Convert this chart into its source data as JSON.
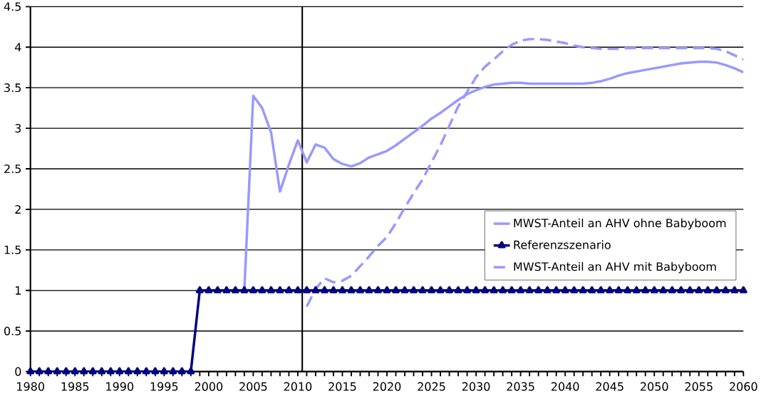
{
  "chart_data": {
    "type": "line",
    "xlim": [
      1980,
      2060
    ],
    "xticks": [
      1980,
      1985,
      1990,
      1995,
      2000,
      2005,
      2010,
      2015,
      2020,
      2025,
      2030,
      2035,
      2040,
      2045,
      2050,
      2055,
      2060
    ],
    "ylim": [
      0,
      4.5
    ],
    "yticks": [
      0,
      0.5,
      1,
      1.5,
      2,
      2.5,
      3,
      3.5,
      4,
      4.5
    ],
    "grid": "y",
    "legend": "right",
    "ref_lines": [
      {
        "axis": "x",
        "value": 2010.5,
        "color": "#000000"
      }
    ],
    "series": [
      {
        "name": "MWST-Anteil an AHV ohne Babyboom",
        "color": "#9999ff",
        "marker": "none",
        "line_style": "solid",
        "x": [
          2004,
          2005,
          2006,
          2007,
          2008,
          2009,
          2010,
          2011,
          2012,
          2013,
          2014,
          2015,
          2016,
          2017,
          2018,
          2019,
          2020,
          2021,
          2022,
          2023,
          2024,
          2025,
          2026,
          2027,
          2028,
          2029,
          2030,
          2031,
          2032,
          2033,
          2034,
          2035,
          2036,
          2037,
          2038,
          2039,
          2040,
          2041,
          2042,
          2043,
          2044,
          2045,
          2046,
          2047,
          2048,
          2049,
          2050,
          2051,
          2052,
          2053,
          2054,
          2055,
          2056,
          2057,
          2058,
          2059,
          2060
        ],
        "values": [
          1.0,
          3.4,
          3.25,
          2.95,
          2.22,
          2.55,
          2.85,
          2.58,
          2.8,
          2.76,
          2.62,
          2.56,
          2.53,
          2.57,
          2.64,
          2.68,
          2.72,
          2.79,
          2.87,
          2.95,
          3.03,
          3.12,
          3.19,
          3.27,
          3.35,
          3.42,
          3.47,
          3.51,
          3.54,
          3.55,
          3.56,
          3.56,
          3.55,
          3.55,
          3.55,
          3.55,
          3.55,
          3.55,
          3.55,
          3.56,
          3.58,
          3.61,
          3.65,
          3.68,
          3.7,
          3.72,
          3.74,
          3.76,
          3.78,
          3.8,
          3.81,
          3.82,
          3.82,
          3.81,
          3.78,
          3.74,
          3.69
        ]
      },
      {
        "name": "Referenzszenario",
        "color": "#000080",
        "marker": "triangle",
        "line_style": "solid",
        "x": [
          1980,
          1981,
          1982,
          1983,
          1984,
          1985,
          1986,
          1987,
          1988,
          1989,
          1990,
          1991,
          1992,
          1993,
          1994,
          1995,
          1996,
          1997,
          1998,
          1999,
          2000,
          2001,
          2002,
          2003,
          2004,
          2005,
          2006,
          2007,
          2008,
          2009,
          2010,
          2011,
          2012,
          2013,
          2014,
          2015,
          2016,
          2017,
          2018,
          2019,
          2020,
          2021,
          2022,
          2023,
          2024,
          2025,
          2026,
          2027,
          2028,
          2029,
          2030,
          2031,
          2032,
          2033,
          2034,
          2035,
          2036,
          2037,
          2038,
          2039,
          2040,
          2041,
          2042,
          2043,
          2044,
          2045,
          2046,
          2047,
          2048,
          2049,
          2050,
          2051,
          2052,
          2053,
          2054,
          2055,
          2056,
          2057,
          2058,
          2059,
          2060
        ],
        "values": [
          0,
          0,
          0,
          0,
          0,
          0,
          0,
          0,
          0,
          0,
          0,
          0,
          0,
          0,
          0,
          0,
          0,
          0,
          0,
          1,
          1,
          1,
          1,
          1,
          1,
          1,
          1,
          1,
          1,
          1,
          1,
          1,
          1,
          1,
          1,
          1,
          1,
          1,
          1,
          1,
          1,
          1,
          1,
          1,
          1,
          1,
          1,
          1,
          1,
          1,
          1,
          1,
          1,
          1,
          1,
          1,
          1,
          1,
          1,
          1,
          1,
          1,
          1,
          1,
          1,
          1,
          1,
          1,
          1,
          1,
          1,
          1,
          1,
          1,
          1,
          1,
          1,
          1,
          1,
          1,
          1
        ]
      },
      {
        "name": "MWST-Anteil an AHV mit Babyboom",
        "color": "#9999ff",
        "marker": "none",
        "line_style": "dashed",
        "x": [
          2011,
          2012,
          2013,
          2014,
          2015,
          2016,
          2017,
          2018,
          2019,
          2020,
          2021,
          2022,
          2023,
          2024,
          2025,
          2026,
          2027,
          2028,
          2029,
          2030,
          2031,
          2032,
          2033,
          2034,
          2035,
          2036,
          2037,
          2038,
          2039,
          2040,
          2041,
          2042,
          2043,
          2044,
          2045,
          2046,
          2047,
          2048,
          2049,
          2050,
          2051,
          2052,
          2053,
          2054,
          2055,
          2056,
          2057,
          2058,
          2059,
          2060
        ],
        "values": [
          0.8,
          1.02,
          1.15,
          1.1,
          1.12,
          1.18,
          1.3,
          1.42,
          1.55,
          1.66,
          1.83,
          2.02,
          2.2,
          2.37,
          2.58,
          2.79,
          3.03,
          3.27,
          3.45,
          3.63,
          3.76,
          3.85,
          3.95,
          4.03,
          4.08,
          4.1,
          4.1,
          4.09,
          4.07,
          4.05,
          4.02,
          4.0,
          3.99,
          3.98,
          3.98,
          3.98,
          3.99,
          3.99,
          3.99,
          3.99,
          3.99,
          3.99,
          3.99,
          3.99,
          3.99,
          3.99,
          3.98,
          3.95,
          3.9,
          3.85
        ]
      }
    ]
  }
}
